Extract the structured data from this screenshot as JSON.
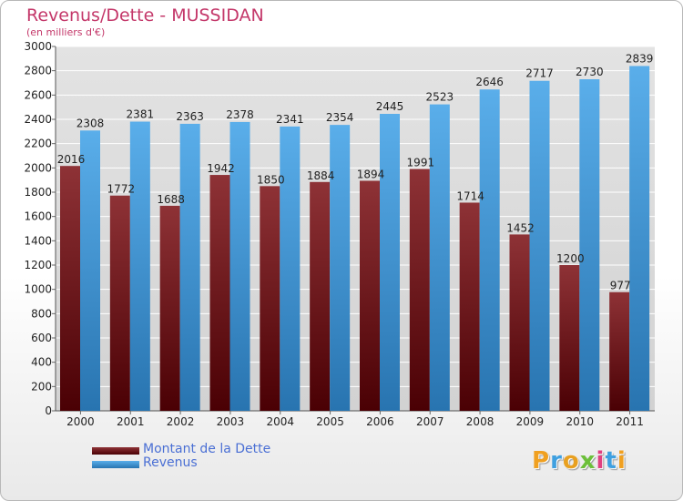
{
  "title": "Revenus/Dette - MUSSIDAN",
  "subtitle": "(en milliers d'€)",
  "legend": {
    "debt_label": "Montant de la Dette",
    "revenue_label": "Revenus"
  },
  "logo": {
    "text": "Proxiti",
    "letter_colors": [
      "#f0a020",
      "#3fa0e0",
      "#e8a020",
      "#6cbf3a",
      "#e04080",
      "#3fa0e0",
      "#f0a020"
    ]
  },
  "colors": {
    "debt_top": "#8e3236",
    "debt_bottom": "#4a0004",
    "revenue_top": "#5aaeea",
    "revenue_bottom": "#2874b0",
    "axis_text": "#222222",
    "grid": "#ffffff"
  },
  "chart_data": {
    "type": "bar",
    "categories": [
      "2000",
      "2001",
      "2002",
      "2003",
      "2004",
      "2005",
      "2006",
      "2007",
      "2008",
      "2009",
      "2010",
      "2011"
    ],
    "series": [
      {
        "name": "Montant de la Dette",
        "values": [
          2016,
          1772,
          1688,
          1942,
          1850,
          1884,
          1894,
          1991,
          1714,
          1452,
          1200,
          977
        ],
        "labels": [
          "2016",
          "1772",
          "1688",
          "1942",
          "1850",
          "1884",
          "1894",
          "1991",
          "1714",
          "1452",
          "1200",
          "977"
        ]
      },
      {
        "name": "Revenus",
        "values": [
          2308,
          2381,
          2363,
          2378,
          2341,
          2354,
          2445,
          2523,
          2646,
          2717,
          2730,
          2839
        ],
        "labels": [
          "2308",
          "2381",
          "2363",
          "2378",
          "2341",
          "2354",
          "2445",
          "2523",
          "2646",
          "2717",
          "2730",
          "2839"
        ]
      }
    ],
    "title": "Revenus/Dette - MUSSIDAN",
    "subtitle": "(en milliers d'€)",
    "xlabel": "",
    "ylabel": "",
    "ylim": [
      0,
      3000
    ],
    "yticks": [
      0,
      200,
      400,
      600,
      800,
      1000,
      1200,
      1400,
      1600,
      1800,
      2000,
      2200,
      2400,
      2600,
      2800,
      3000
    ],
    "grid": true,
    "legend_position": "bottom-left"
  }
}
